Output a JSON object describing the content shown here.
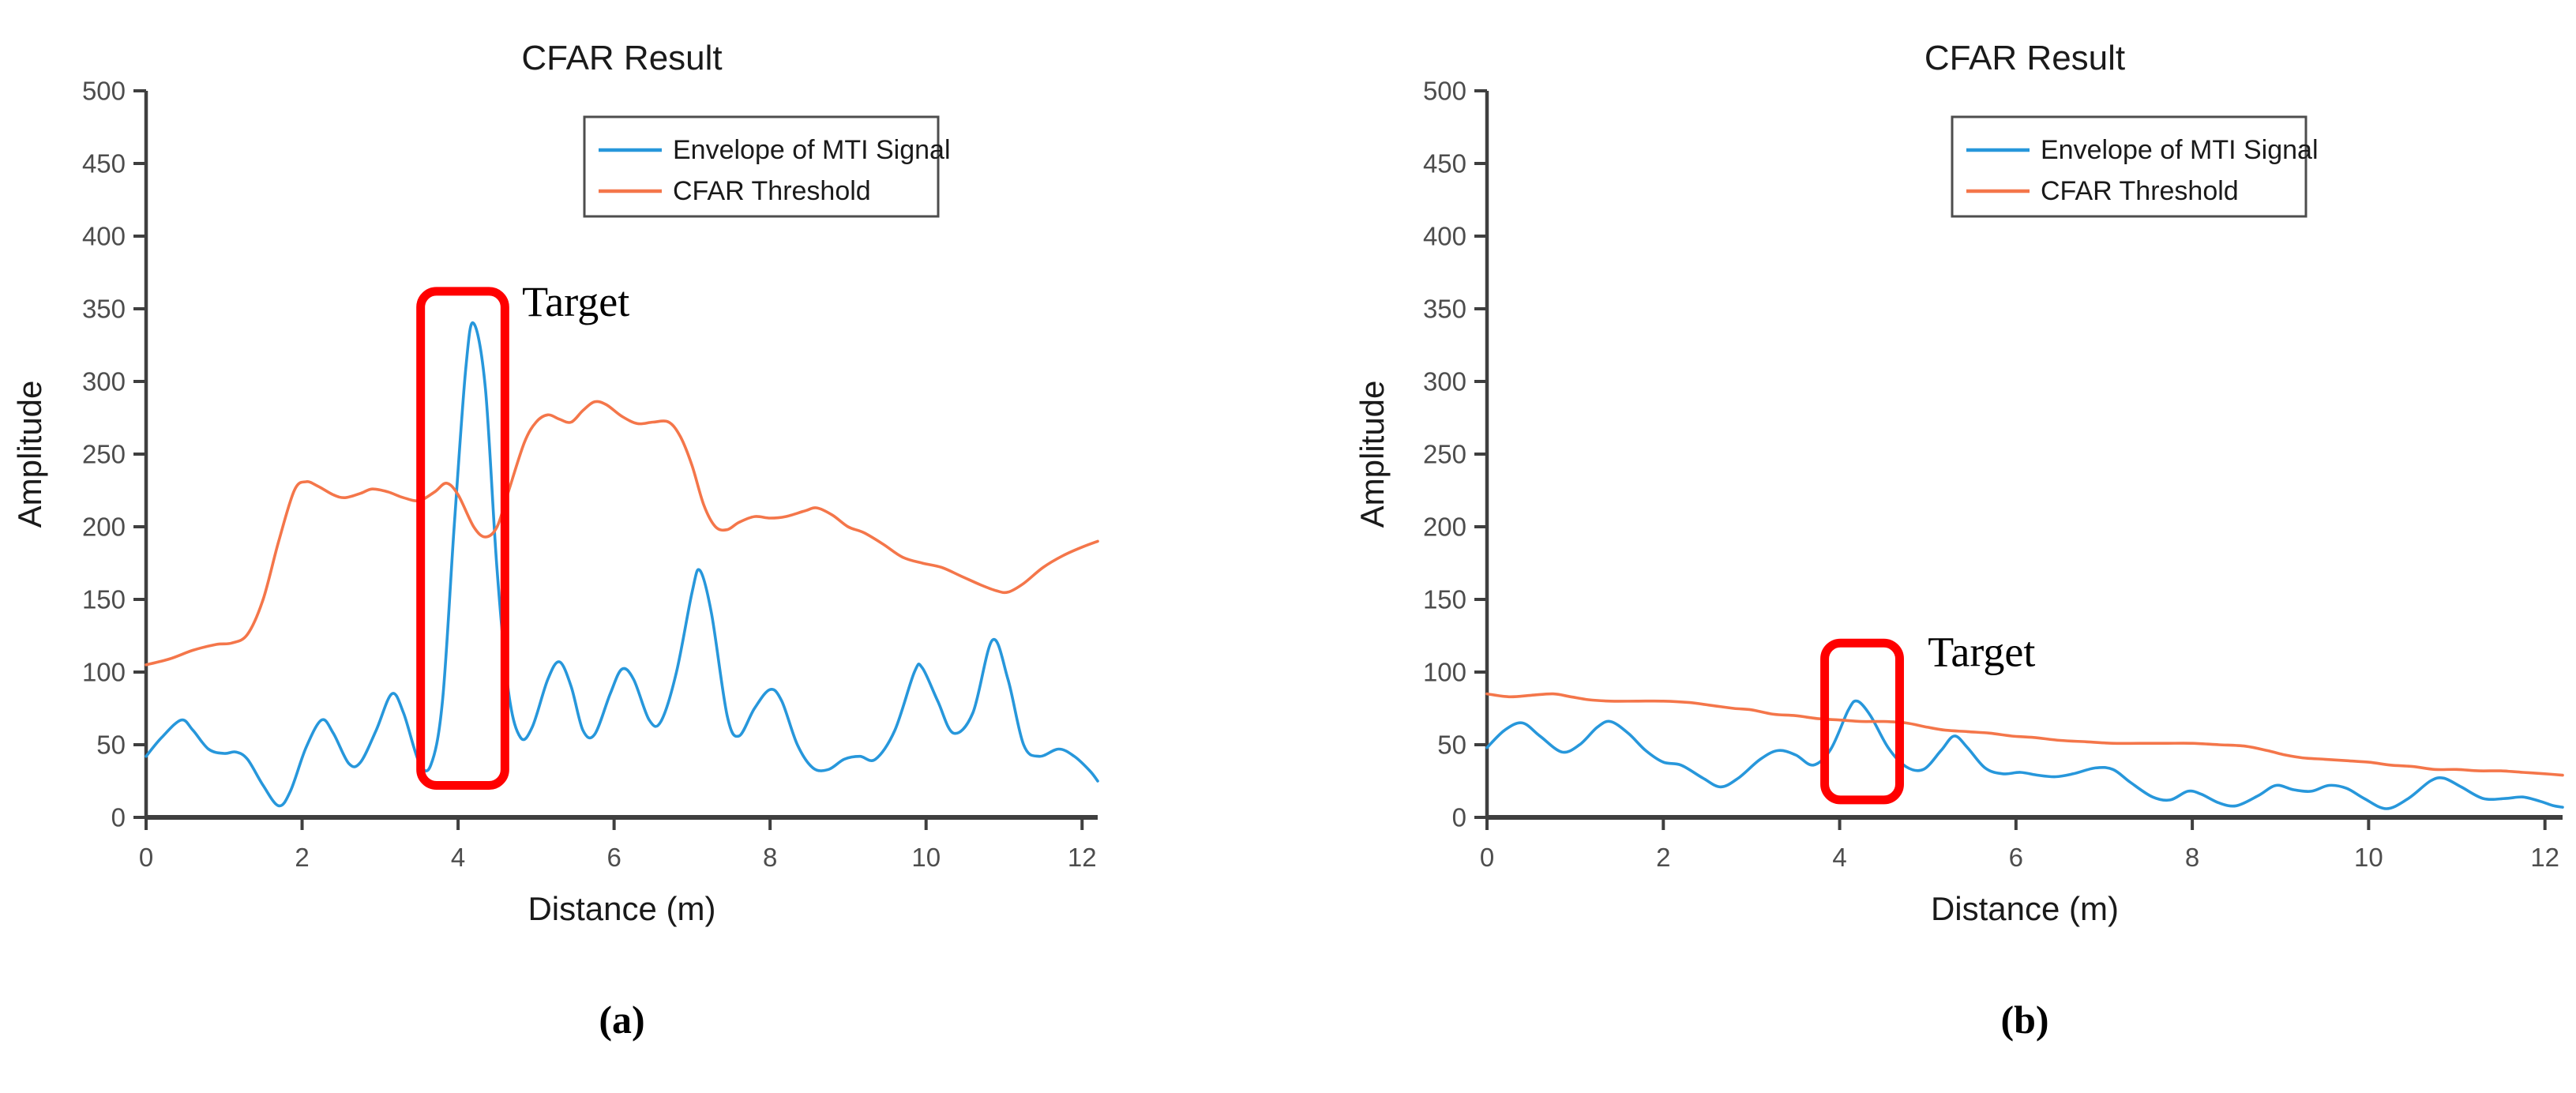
{
  "figure": {
    "captions": [
      "(a)",
      "(b)"
    ]
  },
  "colors": {
    "blue": "#2797DB",
    "orange": "#F4764A",
    "red": "#FF0000",
    "axis": "#3F3F3F",
    "tick_label": "#4D4D4D",
    "text": "#1A1A1A",
    "legend_border": "#4D4D4D"
  },
  "chart_data": [
    {
      "type": "line",
      "title": "CFAR Result",
      "xlabel": "Distance (m)",
      "ylabel": "Amplitude",
      "xlim": [
        0,
        12.2
      ],
      "ylim": [
        0,
        500
      ],
      "xticks": [
        0,
        2,
        4,
        6,
        8,
        10,
        12
      ],
      "yticks": [
        0,
        50,
        100,
        150,
        200,
        250,
        300,
        350,
        400,
        450,
        500
      ],
      "grid": false,
      "legend": {
        "position": "upper-right",
        "entries": [
          {
            "label": "Envelope of MTI Signal",
            "color": "#2797DB"
          },
          {
            "label": "CFAR Threshold",
            "color": "#F4764A"
          }
        ]
      },
      "series": [
        {
          "name": "Envelope of MTI Signal",
          "color": "#2797DB",
          "points": [
            [
              0,
              42
            ],
            [
              0.2,
              55
            ],
            [
              0.45,
              67
            ],
            [
              0.6,
              60
            ],
            [
              0.8,
              47
            ],
            [
              1.0,
              44
            ],
            [
              1.15,
              45
            ],
            [
              1.3,
              40
            ],
            [
              1.5,
              22
            ],
            [
              1.7,
              8
            ],
            [
              1.85,
              18
            ],
            [
              2.05,
              48
            ],
            [
              2.25,
              67
            ],
            [
              2.4,
              58
            ],
            [
              2.6,
              37
            ],
            [
              2.75,
              38
            ],
            [
              2.95,
              60
            ],
            [
              3.15,
              85
            ],
            [
              3.3,
              72
            ],
            [
              3.5,
              38
            ],
            [
              3.65,
              36
            ],
            [
              3.8,
              80
            ],
            [
              3.95,
              200
            ],
            [
              4.1,
              310
            ],
            [
              4.2,
              340
            ],
            [
              4.35,
              295
            ],
            [
              4.5,
              170
            ],
            [
              4.65,
              85
            ],
            [
              4.8,
              55
            ],
            [
              4.95,
              62
            ],
            [
              5.15,
              95
            ],
            [
              5.3,
              107
            ],
            [
              5.45,
              90
            ],
            [
              5.6,
              60
            ],
            [
              5.75,
              57
            ],
            [
              5.95,
              85
            ],
            [
              6.1,
              102
            ],
            [
              6.25,
              95
            ],
            [
              6.45,
              67
            ],
            [
              6.6,
              66
            ],
            [
              6.8,
              100
            ],
            [
              7.0,
              155
            ],
            [
              7.1,
              170
            ],
            [
              7.25,
              140
            ],
            [
              7.45,
              70
            ],
            [
              7.6,
              56
            ],
            [
              7.8,
              75
            ],
            [
              8.0,
              88
            ],
            [
              8.15,
              80
            ],
            [
              8.35,
              50
            ],
            [
              8.55,
              34
            ],
            [
              8.75,
              33
            ],
            [
              8.95,
              40
            ],
            [
              9.15,
              42
            ],
            [
              9.35,
              40
            ],
            [
              9.6,
              60
            ],
            [
              9.85,
              100
            ],
            [
              9.95,
              103
            ],
            [
              10.15,
              80
            ],
            [
              10.35,
              58
            ],
            [
              10.6,
              72
            ],
            [
              10.85,
              122
            ],
            [
              11.05,
              95
            ],
            [
              11.25,
              50
            ],
            [
              11.45,
              42
            ],
            [
              11.7,
              47
            ],
            [
              11.9,
              42
            ],
            [
              12.1,
              32
            ],
            [
              12.2,
              25
            ]
          ]
        },
        {
          "name": "CFAR Threshold",
          "color": "#F4764A",
          "points": [
            [
              0,
              105
            ],
            [
              0.3,
              109
            ],
            [
              0.6,
              115
            ],
            [
              0.9,
              119
            ],
            [
              1.1,
              120
            ],
            [
              1.3,
              126
            ],
            [
              1.5,
              150
            ],
            [
              1.7,
              190
            ],
            [
              1.9,
              225
            ],
            [
              2.05,
              231
            ],
            [
              2.2,
              228
            ],
            [
              2.4,
              222
            ],
            [
              2.55,
              220
            ],
            [
              2.75,
              223
            ],
            [
              2.9,
              226
            ],
            [
              3.1,
              224
            ],
            [
              3.3,
              220
            ],
            [
              3.5,
              218
            ],
            [
              3.7,
              224
            ],
            [
              3.85,
              230
            ],
            [
              4.0,
              222
            ],
            [
              4.2,
              200
            ],
            [
              4.35,
              193
            ],
            [
              4.5,
              200
            ],
            [
              4.65,
              225
            ],
            [
              4.85,
              258
            ],
            [
              5.0,
              272
            ],
            [
              5.15,
              277
            ],
            [
              5.3,
              274
            ],
            [
              5.45,
              272
            ],
            [
              5.6,
              280
            ],
            [
              5.75,
              286
            ],
            [
              5.9,
              284
            ],
            [
              6.1,
              276
            ],
            [
              6.3,
              271
            ],
            [
              6.5,
              272
            ],
            [
              6.7,
              272
            ],
            [
              6.85,
              262
            ],
            [
              7.0,
              242
            ],
            [
              7.15,
              215
            ],
            [
              7.3,
              200
            ],
            [
              7.45,
              198
            ],
            [
              7.6,
              203
            ],
            [
              7.8,
              207
            ],
            [
              8.0,
              206
            ],
            [
              8.2,
              207
            ],
            [
              8.45,
              211
            ],
            [
              8.6,
              213
            ],
            [
              8.8,
              208
            ],
            [
              9.0,
              200
            ],
            [
              9.2,
              196
            ],
            [
              9.45,
              188
            ],
            [
              9.7,
              179
            ],
            [
              9.95,
              175
            ],
            [
              10.2,
              172
            ],
            [
              10.45,
              166
            ],
            [
              10.7,
              160
            ],
            [
              10.9,
              156
            ],
            [
              11.05,
              155
            ],
            [
              11.25,
              161
            ],
            [
              11.5,
              172
            ],
            [
              11.75,
              180
            ],
            [
              12.0,
              186
            ],
            [
              12.2,
              190
            ]
          ]
        }
      ],
      "annotation": {
        "label": "Target",
        "box_x": [
          3.52,
          4.6
        ],
        "box_y": [
          22,
          362
        ],
        "label_x": 4.82,
        "label_y": 345,
        "color": "#FF0000"
      }
    },
    {
      "type": "line",
      "title": "CFAR Result",
      "xlabel": "Distance (m)",
      "ylabel": "Amplitude",
      "xlim": [
        0,
        12.2
      ],
      "ylim": [
        0,
        500
      ],
      "xticks": [
        0,
        2,
        4,
        6,
        8,
        10,
        12
      ],
      "yticks": [
        0,
        50,
        100,
        150,
        200,
        250,
        300,
        350,
        400,
        450,
        500
      ],
      "grid": false,
      "legend": {
        "position": "upper-right",
        "entries": [
          {
            "label": "Envelope of MTI Signal",
            "color": "#2797DB"
          },
          {
            "label": "CFAR Threshold",
            "color": "#F4764A"
          }
        ]
      },
      "series": [
        {
          "name": "Envelope of MTI Signal",
          "color": "#2797DB",
          "points": [
            [
              0,
              48
            ],
            [
              0.2,
              60
            ],
            [
              0.4,
              65
            ],
            [
              0.6,
              56
            ],
            [
              0.85,
              45
            ],
            [
              1.05,
              50
            ],
            [
              1.25,
              62
            ],
            [
              1.4,
              66
            ],
            [
              1.6,
              58
            ],
            [
              1.8,
              46
            ],
            [
              2.0,
              38
            ],
            [
              2.2,
              36
            ],
            [
              2.45,
              27
            ],
            [
              2.65,
              21
            ],
            [
              2.85,
              27
            ],
            [
              3.1,
              40
            ],
            [
              3.3,
              46
            ],
            [
              3.5,
              43
            ],
            [
              3.7,
              36
            ],
            [
              3.9,
              47
            ],
            [
              4.1,
              74
            ],
            [
              4.2,
              80
            ],
            [
              4.35,
              70
            ],
            [
              4.55,
              48
            ],
            [
              4.75,
              35
            ],
            [
              4.95,
              33
            ],
            [
              5.15,
              46
            ],
            [
              5.3,
              56
            ],
            [
              5.45,
              48
            ],
            [
              5.65,
              34
            ],
            [
              5.85,
              30
            ],
            [
              6.05,
              31
            ],
            [
              6.25,
              29
            ],
            [
              6.45,
              28
            ],
            [
              6.65,
              30
            ],
            [
              6.9,
              34
            ],
            [
              7.1,
              33
            ],
            [
              7.3,
              24
            ],
            [
              7.55,
              14
            ],
            [
              7.75,
              12
            ],
            [
              7.95,
              18
            ],
            [
              8.1,
              16
            ],
            [
              8.3,
              10
            ],
            [
              8.5,
              8
            ],
            [
              8.75,
              15
            ],
            [
              8.95,
              22
            ],
            [
              9.15,
              19
            ],
            [
              9.35,
              18
            ],
            [
              9.55,
              22
            ],
            [
              9.75,
              20
            ],
            [
              9.95,
              13
            ],
            [
              10.2,
              6
            ],
            [
              10.45,
              13
            ],
            [
              10.7,
              25
            ],
            [
              10.85,
              27
            ],
            [
              11.05,
              21
            ],
            [
              11.3,
              13
            ],
            [
              11.55,
              13
            ],
            [
              11.75,
              14
            ],
            [
              11.95,
              11
            ],
            [
              12.1,
              8
            ],
            [
              12.2,
              7
            ]
          ]
        },
        {
          "name": "CFAR Threshold",
          "color": "#F4764A",
          "points": [
            [
              0,
              85
            ],
            [
              0.25,
              83
            ],
            [
              0.5,
              84
            ],
            [
              0.75,
              85
            ],
            [
              0.95,
              83
            ],
            [
              1.15,
              81
            ],
            [
              1.4,
              80
            ],
            [
              1.7,
              80
            ],
            [
              2.0,
              80
            ],
            [
              2.3,
              79
            ],
            [
              2.55,
              77
            ],
            [
              2.8,
              75
            ],
            [
              3.0,
              74
            ],
            [
              3.25,
              71
            ],
            [
              3.5,
              70
            ],
            [
              3.75,
              68
            ],
            [
              4.0,
              67
            ],
            [
              4.25,
              66
            ],
            [
              4.5,
              66
            ],
            [
              4.75,
              65
            ],
            [
              5.0,
              62
            ],
            [
              5.2,
              60
            ],
            [
              5.45,
              59
            ],
            [
              5.7,
              58
            ],
            [
              5.95,
              56
            ],
            [
              6.2,
              55
            ],
            [
              6.5,
              53
            ],
            [
              6.8,
              52
            ],
            [
              7.1,
              51
            ],
            [
              7.4,
              51
            ],
            [
              7.7,
              51
            ],
            [
              8.0,
              51
            ],
            [
              8.3,
              50
            ],
            [
              8.6,
              49
            ],
            [
              8.85,
              46
            ],
            [
              9.05,
              43
            ],
            [
              9.25,
              41
            ],
            [
              9.5,
              40
            ],
            [
              9.75,
              39
            ],
            [
              10.0,
              38
            ],
            [
              10.25,
              36
            ],
            [
              10.5,
              35
            ],
            [
              10.75,
              33
            ],
            [
              11.0,
              33
            ],
            [
              11.25,
              32
            ],
            [
              11.5,
              32
            ],
            [
              11.75,
              31
            ],
            [
              12.0,
              30
            ],
            [
              12.2,
              29
            ]
          ]
        }
      ],
      "annotation": {
        "label": "Target",
        "box_x": [
          3.83,
          4.68
        ],
        "box_y": [
          12,
          120
        ],
        "label_x": 5.0,
        "label_y": 104,
        "color": "#FF0000"
      }
    }
  ]
}
